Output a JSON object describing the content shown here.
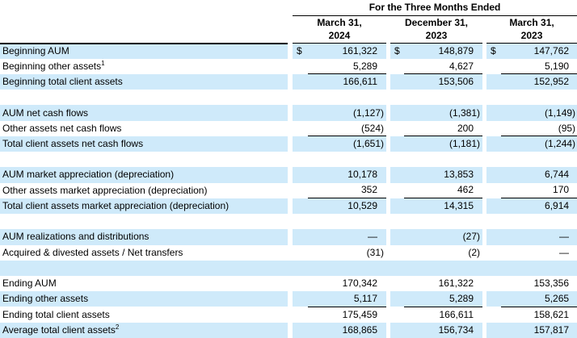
{
  "table": {
    "title": "For the Three Months Ended",
    "columns": [
      {
        "line1": "March 31,",
        "line2": "2024"
      },
      {
        "line1": "December 31,",
        "line2": "2023"
      },
      {
        "line1": "March 31,",
        "line2": "2023"
      }
    ],
    "currency_symbol": "$",
    "shade_color": "#cfeafa",
    "rows": [
      {
        "label": "Beginning AUM",
        "sup": "",
        "dollar": true,
        "shaded": true,
        "underline": false,
        "blank": false,
        "values": [
          "161,322",
          "148,879",
          "147,762"
        ]
      },
      {
        "label": "Beginning other assets",
        "sup": "1",
        "dollar": false,
        "shaded": false,
        "underline": true,
        "blank": false,
        "values": [
          "5,289",
          "4,627",
          "5,190"
        ]
      },
      {
        "label": "Beginning total client assets",
        "sup": "",
        "dollar": false,
        "shaded": true,
        "underline": false,
        "blank": false,
        "values": [
          "166,611",
          "153,506",
          "152,952"
        ]
      },
      {
        "label": "",
        "sup": "",
        "dollar": false,
        "shaded": false,
        "underline": false,
        "blank": true,
        "values": [
          "",
          "",
          ""
        ]
      },
      {
        "label": "AUM net cash flows",
        "sup": "",
        "dollar": false,
        "shaded": true,
        "underline": false,
        "blank": false,
        "values": [
          "(1,127)",
          "(1,381)",
          "(1,149)"
        ]
      },
      {
        "label": "Other assets net cash flows",
        "sup": "",
        "dollar": false,
        "shaded": false,
        "underline": true,
        "blank": false,
        "values": [
          "(524)",
          "200",
          "(95)"
        ]
      },
      {
        "label": "Total client assets net cash flows",
        "sup": "",
        "dollar": false,
        "shaded": true,
        "underline": false,
        "blank": false,
        "values": [
          "(1,651)",
          "(1,181)",
          "(1,244)"
        ]
      },
      {
        "label": "",
        "sup": "",
        "dollar": false,
        "shaded": false,
        "underline": false,
        "blank": true,
        "values": [
          "",
          "",
          ""
        ]
      },
      {
        "label": "AUM market appreciation (depreciation)",
        "sup": "",
        "dollar": false,
        "shaded": true,
        "underline": false,
        "blank": false,
        "values": [
          "10,178",
          "13,853",
          "6,744"
        ]
      },
      {
        "label": "Other assets market appreciation (depreciation)",
        "sup": "",
        "dollar": false,
        "shaded": false,
        "underline": true,
        "blank": false,
        "values": [
          "352",
          "462",
          "170"
        ]
      },
      {
        "label": "Total client assets market appreciation (depreciation)",
        "sup": "",
        "dollar": false,
        "shaded": true,
        "underline": false,
        "blank": false,
        "values": [
          "10,529",
          "14,315",
          "6,914"
        ]
      },
      {
        "label": "",
        "sup": "",
        "dollar": false,
        "shaded": false,
        "underline": false,
        "blank": true,
        "values": [
          "",
          "",
          ""
        ]
      },
      {
        "label": "AUM realizations and distributions",
        "sup": "",
        "dollar": false,
        "shaded": true,
        "underline": false,
        "blank": false,
        "values": [
          "—",
          "(27)",
          "—"
        ]
      },
      {
        "label": "Acquired & divested assets / Net transfers",
        "sup": "",
        "dollar": false,
        "shaded": false,
        "underline": false,
        "blank": false,
        "values": [
          "(31)",
          "(2)",
          "—"
        ]
      },
      {
        "label": "",
        "sup": "",
        "dollar": false,
        "shaded": true,
        "underline": false,
        "blank": true,
        "values": [
          "",
          "",
          ""
        ]
      },
      {
        "label": "Ending AUM",
        "sup": "",
        "dollar": false,
        "shaded": false,
        "underline": false,
        "blank": false,
        "values": [
          "170,342",
          "161,322",
          "153,356"
        ]
      },
      {
        "label": "Ending other assets",
        "sup": "",
        "dollar": false,
        "shaded": true,
        "underline": true,
        "blank": false,
        "values": [
          "5,117",
          "5,289",
          "5,265"
        ]
      },
      {
        "label": "Ending total client assets",
        "sup": "",
        "dollar": false,
        "shaded": false,
        "underline": false,
        "blank": false,
        "values": [
          "175,459",
          "166,611",
          "158,621"
        ]
      },
      {
        "label": "Average total client assets",
        "sup": "2",
        "dollar": false,
        "shaded": true,
        "underline": false,
        "blank": false,
        "values": [
          "168,865",
          "156,734",
          "157,817"
        ]
      }
    ]
  }
}
